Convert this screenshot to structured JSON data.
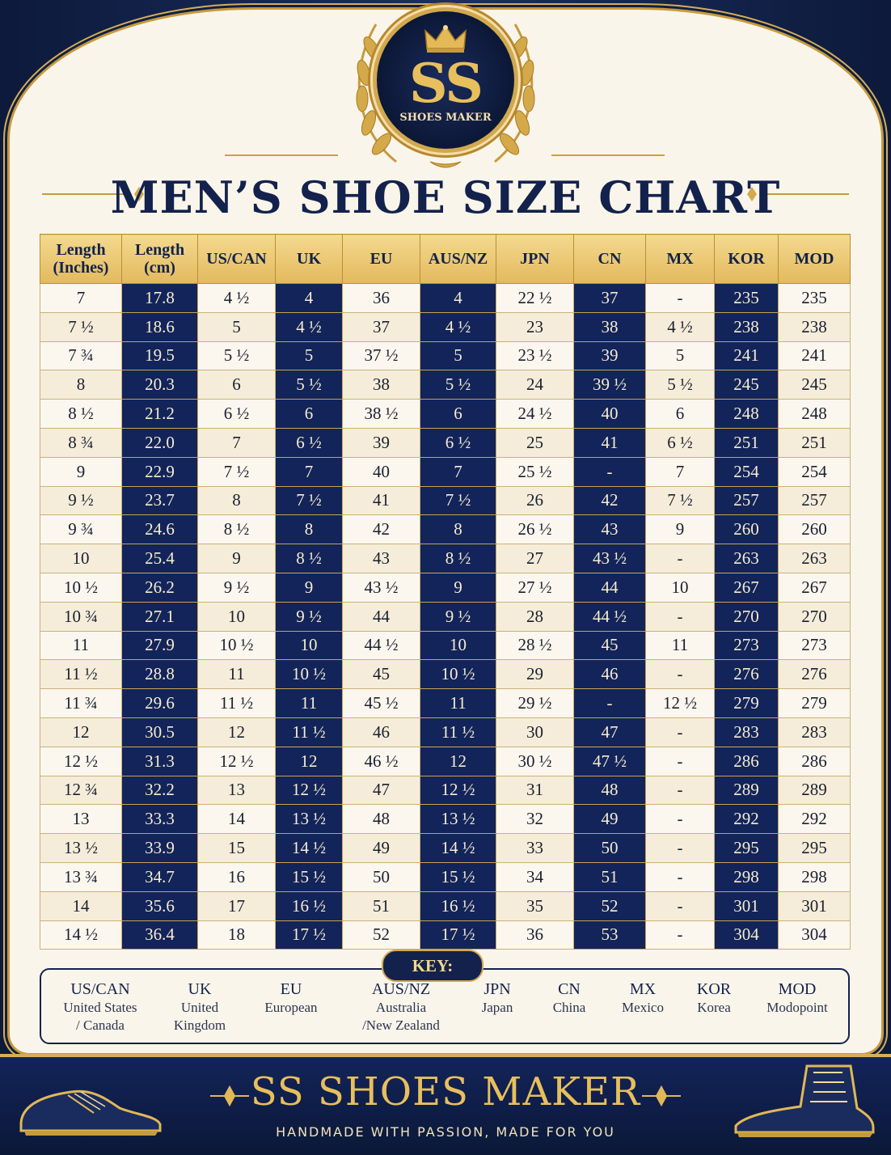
{
  "logo": {
    "initials": "SS",
    "subtitle": "SHOES MAKER"
  },
  "title": "MEN’S SHOE SIZE CHART",
  "table": {
    "headers": [
      "Length (Inches)",
      "Length (cm)",
      "US/CAN",
      "UK",
      "EU",
      "AUS/NZ",
      "JPN",
      "CN",
      "MX",
      "KOR",
      "MOD"
    ],
    "rows": [
      [
        "7",
        "17.8",
        "4 ½",
        "4",
        "36",
        "4",
        "22 ½",
        "37",
        "-",
        "235",
        "235"
      ],
      [
        "7 ½",
        "18.6",
        "5",
        "4 ½",
        "37",
        "4 ½",
        "23",
        "38",
        "4 ½",
        "238",
        "238"
      ],
      [
        "7 ¾",
        "19.5",
        "5 ½",
        "5",
        "37 ½",
        "5",
        "23 ½",
        "39",
        "5",
        "241",
        "241"
      ],
      [
        "8",
        "20.3",
        "6",
        "5 ½",
        "38",
        "5 ½",
        "24",
        "39 ½",
        "5 ½",
        "245",
        "245"
      ],
      [
        "8 ½",
        "21.2",
        "6 ½",
        "6",
        "38 ½",
        "6",
        "24 ½",
        "40",
        "6",
        "248",
        "248"
      ],
      [
        "8 ¾",
        "22.0",
        "7",
        "6 ½",
        "39",
        "6 ½",
        "25",
        "41",
        "6 ½",
        "251",
        "251"
      ],
      [
        "9",
        "22.9",
        "7 ½",
        "7",
        "40",
        "7",
        "25 ½",
        "-",
        "7",
        "254",
        "254"
      ],
      [
        "9 ½",
        "23.7",
        "8",
        "7 ½",
        "41",
        "7 ½",
        "26",
        "42",
        "7 ½",
        "257",
        "257"
      ],
      [
        "9 ¾",
        "24.6",
        "8 ½",
        "8",
        "42",
        "8",
        "26 ½",
        "43",
        "9",
        "260",
        "260"
      ],
      [
        "10",
        "25.4",
        "9",
        "8 ½",
        "43",
        "8 ½",
        "27",
        "43 ½",
        "-",
        "263",
        "263"
      ],
      [
        "10 ½",
        "26.2",
        "9 ½",
        "9",
        "43 ½",
        "9",
        "27 ½",
        "44",
        "10",
        "267",
        "267"
      ],
      [
        "10 ¾",
        "27.1",
        "10",
        "9 ½",
        "44",
        "9 ½",
        "28",
        "44 ½",
        "-",
        "270",
        "270"
      ],
      [
        "11",
        "27.9",
        "10 ½",
        "10",
        "44 ½",
        "10",
        "28 ½",
        "45",
        "11",
        "273",
        "273"
      ],
      [
        "11 ½",
        "28.8",
        "11",
        "10 ½",
        "45",
        "10 ½",
        "29",
        "46",
        "-",
        "276",
        "276"
      ],
      [
        "11 ¾",
        "29.6",
        "11 ½",
        "11",
        "45 ½",
        "11",
        "29 ½",
        "-",
        "12 ½",
        "279",
        "279"
      ],
      [
        "12",
        "30.5",
        "12",
        "11 ½",
        "46",
        "11 ½",
        "30",
        "47",
        "-",
        "283",
        "283"
      ],
      [
        "12 ½",
        "31.3",
        "12 ½",
        "12",
        "46 ½",
        "12",
        "30 ½",
        "47 ½",
        "-",
        "286",
        "286"
      ],
      [
        "12 ¾",
        "32.2",
        "13",
        "12 ½",
        "47",
        "12 ½",
        "31",
        "48",
        "-",
        "289",
        "289"
      ],
      [
        "13",
        "33.3",
        "14",
        "13 ½",
        "48",
        "13 ½",
        "32",
        "49",
        "-",
        "292",
        "292"
      ],
      [
        "13 ½",
        "33.9",
        "15",
        "14 ½",
        "49",
        "14 ½",
        "33",
        "50",
        "-",
        "295",
        "295"
      ],
      [
        "13 ¾",
        "34.7",
        "16",
        "15 ½",
        "50",
        "15 ½",
        "34",
        "51",
        "-",
        "298",
        "298"
      ],
      [
        "14",
        "35.6",
        "17",
        "16 ½",
        "51",
        "16 ½",
        "35",
        "52",
        "-",
        "301",
        "301"
      ],
      [
        "14 ½",
        "36.4",
        "18",
        "17 ½",
        "52",
        "17 ½",
        "36",
        "53",
        "-",
        "304",
        "304"
      ]
    ]
  },
  "key": {
    "label": "KEY:",
    "items": [
      {
        "abbr": "US/CAN",
        "full": [
          "United States",
          "/ Canada"
        ]
      },
      {
        "abbr": "UK",
        "full": [
          "United",
          "Kingdom"
        ]
      },
      {
        "abbr": "EU",
        "full": [
          "European"
        ]
      },
      {
        "abbr": "AUS/NZ",
        "full": [
          "Australia",
          "/New Zealand"
        ]
      },
      {
        "abbr": "JPN",
        "full": [
          "Japan"
        ]
      },
      {
        "abbr": "CN",
        "full": [
          "China"
        ]
      },
      {
        "abbr": "MX",
        "full": [
          "Mexico"
        ]
      },
      {
        "abbr": "KOR",
        "full": [
          "Korea"
        ]
      },
      {
        "abbr": "MOD",
        "full": [
          "Modopoint"
        ]
      }
    ]
  },
  "footer": {
    "brand": "SS SHOES MAKER",
    "tagline": "HANDMADE WITH PASSION,  MADE FOR YOU"
  },
  "colors": {
    "navy": "#13224c",
    "gold": "#d2a84d",
    "cream": "#faf5ea"
  }
}
